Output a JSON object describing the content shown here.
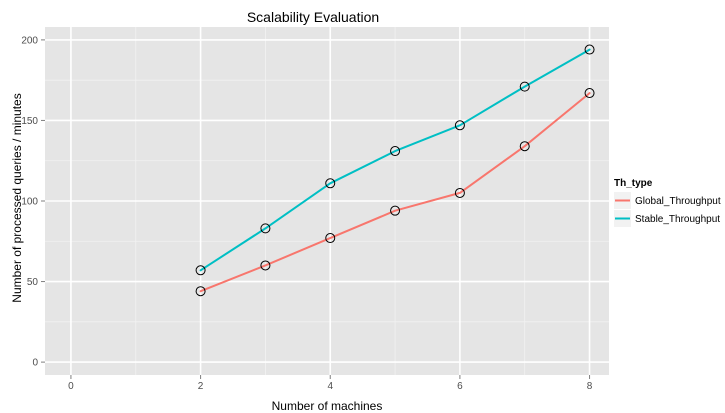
{
  "chart_data": {
    "type": "line",
    "title": "Scalability Evaluation",
    "xlabel": "Number of machines",
    "ylabel": "Number of processed queries / minutes",
    "xlim": [
      -0.4,
      8.3
    ],
    "ylim": [
      -8,
      208
    ],
    "x_ticks": [
      0,
      2,
      4,
      6,
      8
    ],
    "y_ticks": [
      0,
      50,
      100,
      150,
      200
    ],
    "grid": true,
    "legend": {
      "title": "Th_type",
      "placement": "right"
    },
    "x": [
      2,
      3,
      4,
      5,
      6,
      7,
      8
    ],
    "series": [
      {
        "name": "Global_Throughput",
        "color": "#f8766d",
        "values": [
          44,
          60,
          77,
          94,
          105,
          134,
          167
        ]
      },
      {
        "name": "Stable_Throughput",
        "color": "#00bfc4",
        "values": [
          57,
          83,
          111,
          131,
          147,
          171,
          194
        ]
      }
    ],
    "colors": {
      "panel": "#e5e5e5",
      "grid_major": "#ffffff",
      "grid_minor": "#f2f2f2"
    }
  }
}
